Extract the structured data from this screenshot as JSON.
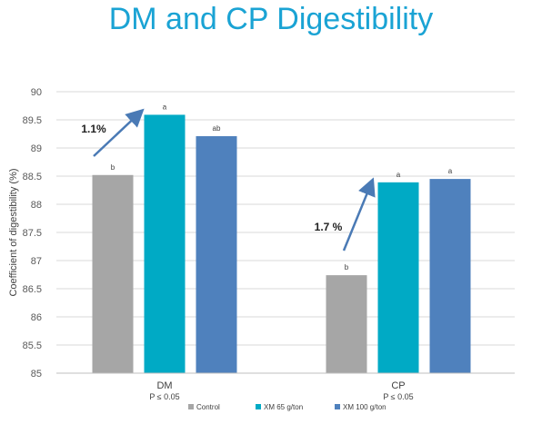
{
  "chart_data": {
    "type": "bar",
    "title": "DM and CP Digestibility",
    "xlabel": "",
    "ylabel": "Coefficient of digestibility (%)",
    "ylim": [
      85,
      90
    ],
    "ytick_step": 0.5,
    "yticks": [
      "85",
      "85.5",
      "86",
      "86.5",
      "87",
      "87.5",
      "88",
      "88.5",
      "89",
      "89.5",
      "90"
    ],
    "grid": true,
    "legend_position": "bottom",
    "categories": [
      "DM",
      "CP"
    ],
    "category_notes": [
      "P ≤ 0.05",
      "P ≤ 0.05"
    ],
    "series": [
      {
        "name": "Control",
        "color": "#a6a6a6",
        "values": [
          88.52,
          86.74
        ],
        "letters": [
          "b",
          "b"
        ]
      },
      {
        "name": "XM 65 g/ton",
        "color": "#00aac5",
        "values": [
          89.59,
          88.39
        ],
        "letters": [
          "a",
          "a"
        ]
      },
      {
        "name": "XM 100 g/ton",
        "color": "#4f81bd",
        "values": [
          89.21,
          88.45
        ],
        "letters": [
          "ab",
          "a"
        ]
      }
    ],
    "annotations": [
      {
        "text": "1.1%",
        "category": 0
      },
      {
        "text": "1.7 %",
        "category": 1
      }
    ],
    "arrow_color": "#4a7ab5"
  }
}
